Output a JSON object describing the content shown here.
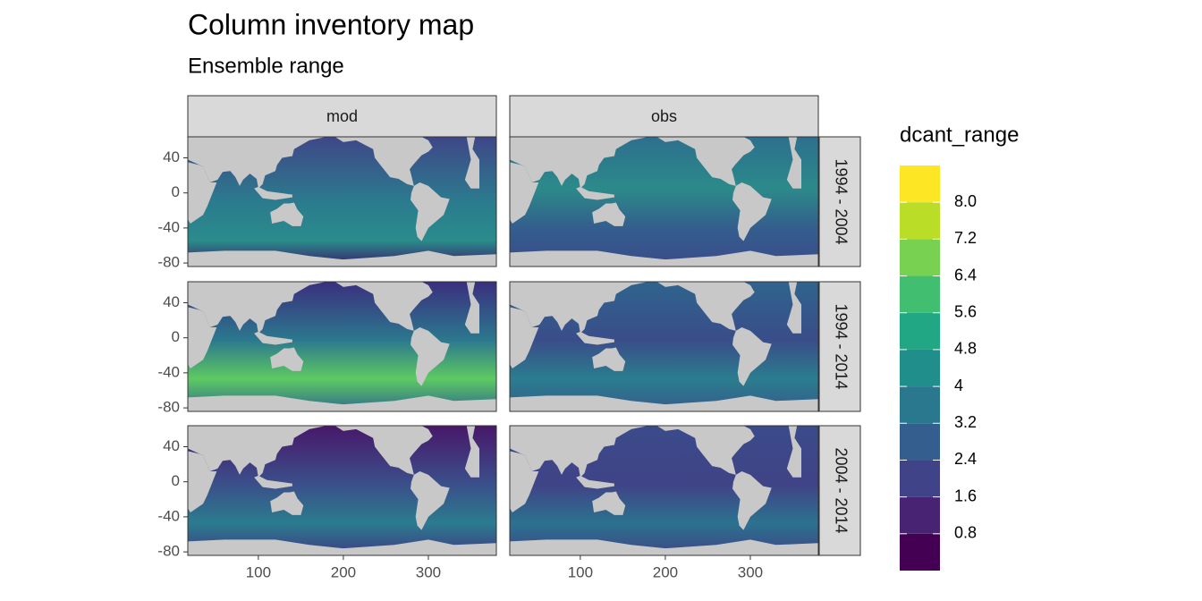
{
  "chart_data": {
    "type": "map",
    "title": "Column inventory map",
    "subtitle": "Ensemble range",
    "facet_columns": [
      "mod",
      "obs"
    ],
    "facet_rows": [
      "1994 - 2004",
      "1994 - 2014",
      "2004 - 2014"
    ],
    "xlim": [
      17,
      380
    ],
    "xticks": [
      100,
      200,
      300
    ],
    "ylim": [
      -84,
      64
    ],
    "yticks": [
      40,
      0,
      -40,
      -80
    ],
    "legend": {
      "title": "dcant_range",
      "limits": [
        0,
        8.8
      ],
      "breaks": [
        0.8,
        1.6,
        2.4,
        3.2,
        4,
        4.8,
        5.6,
        6.4,
        7.2,
        {
          "value": 8,
          "label": "8.0"
        }
      ],
      "colors": [
        "#440154",
        "#482374",
        "#404387",
        "#345e8d",
        "#29788e",
        "#208f8c",
        "#22a784",
        "#42be71",
        "#79d151",
        "#bade28",
        "#fde725"
      ]
    }
  }
}
